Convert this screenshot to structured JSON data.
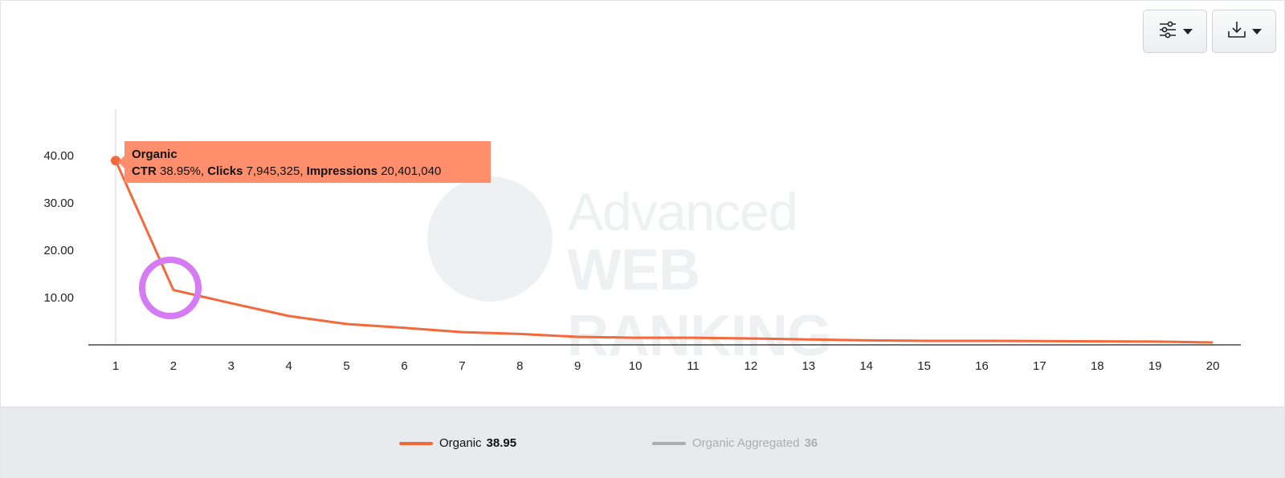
{
  "toolbar": {
    "filter_icon": "sliders-icon",
    "download_icon": "download-icon"
  },
  "watermark": {
    "line1": "Advanced",
    "line2": "WEB RANKING"
  },
  "tooltip": {
    "series": "Organic",
    "ctr_label": "CTR",
    "ctr_value": "38.95%,",
    "clicks_label": "Clicks",
    "clicks_value": "7,945,325,",
    "impressions_label": "Impressions",
    "impressions_value": "20,401,040"
  },
  "legend": {
    "items": [
      {
        "name": "Organic",
        "value": "38.95",
        "color": "#f4683a"
      },
      {
        "name": "Organic Aggregated",
        "value": "36",
        "color": "#a9aeb3"
      }
    ]
  },
  "colors": {
    "organic": "#f4683a",
    "tooltip_bg": "#ff8f6c",
    "highlight": "#d57bf4"
  },
  "chart_data": {
    "type": "line",
    "x": [
      1,
      2,
      3,
      4,
      5,
      6,
      7,
      8,
      9,
      10,
      11,
      12,
      13,
      14,
      15,
      16,
      17,
      18,
      19,
      20
    ],
    "series": [
      {
        "name": "Organic",
        "values": [
          38.95,
          11.6,
          8.8,
          6.1,
          4.4,
          3.6,
          2.7,
          2.3,
          1.7,
          1.5,
          1.5,
          1.35,
          1.15,
          0.95,
          0.85,
          0.85,
          0.8,
          0.75,
          0.7,
          0.5
        ]
      }
    ],
    "y_ticks": [
      "10.00",
      "20.00",
      "30.00",
      "40.00"
    ],
    "x_ticks": [
      "1",
      "2",
      "3",
      "4",
      "5",
      "6",
      "7",
      "8",
      "9",
      "10",
      "11",
      "12",
      "13",
      "14",
      "15",
      "16",
      "17",
      "18",
      "19",
      "20"
    ],
    "ylim": [
      0,
      50
    ],
    "grid": false,
    "legend_position": "bottom"
  }
}
